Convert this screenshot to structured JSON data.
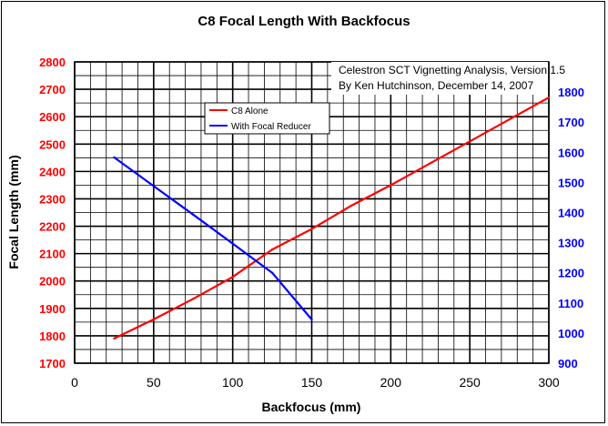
{
  "chart_data": {
    "type": "line",
    "title": "C8 Focal Length With Backfocus",
    "xlabel": "Backfocus (mm)",
    "ylabel": "Focal Length (mm)",
    "xlim": [
      0,
      300
    ],
    "ylim": [
      1700,
      2800
    ],
    "y2lim": [
      900,
      1900
    ],
    "x_ticks": [
      0,
      50,
      100,
      150,
      200,
      250,
      300
    ],
    "y_ticks": [
      1700,
      1800,
      1900,
      2000,
      2100,
      2200,
      2300,
      2400,
      2500,
      2600,
      2700,
      2800
    ],
    "y2_ticks": [
      900,
      1000,
      1100,
      1200,
      1300,
      1400,
      1500,
      1600,
      1700,
      1800
    ],
    "grid": true,
    "legend_position": "top-center",
    "annotation_lines": [
      "Celestron SCT Vignetting Analysis, Version 1.5",
      "By Ken Hutchinson, December 14, 2007"
    ],
    "series": [
      {
        "name": "C8 Alone",
        "color": "#ff0000",
        "axis": "left",
        "x": [
          25,
          50,
          75,
          100,
          125,
          150,
          175,
          200,
          225,
          250,
          275,
          300
        ],
        "values": [
          1790,
          1860,
          1935,
          2015,
          2115,
          2190,
          2275,
          2350,
          2430,
          2510,
          2590,
          2670
        ]
      },
      {
        "name": "With Focal Reducer",
        "color": "#0000ff",
        "axis": "right",
        "x": [
          25,
          50,
          75,
          100,
          125,
          150
        ],
        "values": [
          1583,
          1488,
          1393,
          1297,
          1200,
          1045
        ]
      }
    ]
  }
}
